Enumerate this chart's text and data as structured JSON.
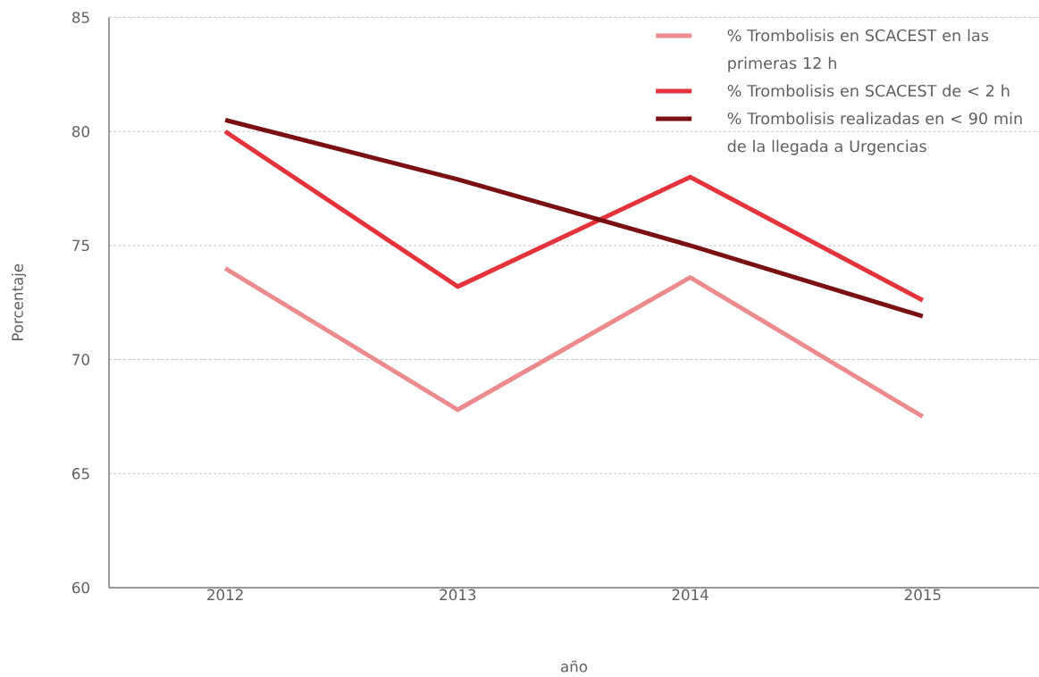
{
  "chart_data": {
    "type": "line",
    "xlabel": "año",
    "ylabel": "Porcentaje",
    "categories": [
      "2012",
      "2013",
      "2014",
      "2015"
    ],
    "series": [
      {
        "name": "% Trombolisis en SCACEST en las primeras 12 h",
        "color": "#ec8a8e",
        "values": [
          74.0,
          67.8,
          73.6,
          67.5
        ]
      },
      {
        "name": "% Trombolisis en SCACEST de < 2 h",
        "color": "#e5333b",
        "values": [
          80.0,
          73.2,
          78.0,
          72.6
        ]
      },
      {
        "name": "% Trombolisis realizadas en < 90 min de la llegada a Urgencias",
        "color": "#7a1013",
        "values": [
          80.5,
          77.9,
          75.0,
          71.9
        ]
      }
    ],
    "ylim": [
      60,
      85
    ],
    "yticks": [
      60,
      65,
      70,
      75,
      80,
      85
    ],
    "grid": "y",
    "legend": "top right",
    "line_style": "solid"
  }
}
